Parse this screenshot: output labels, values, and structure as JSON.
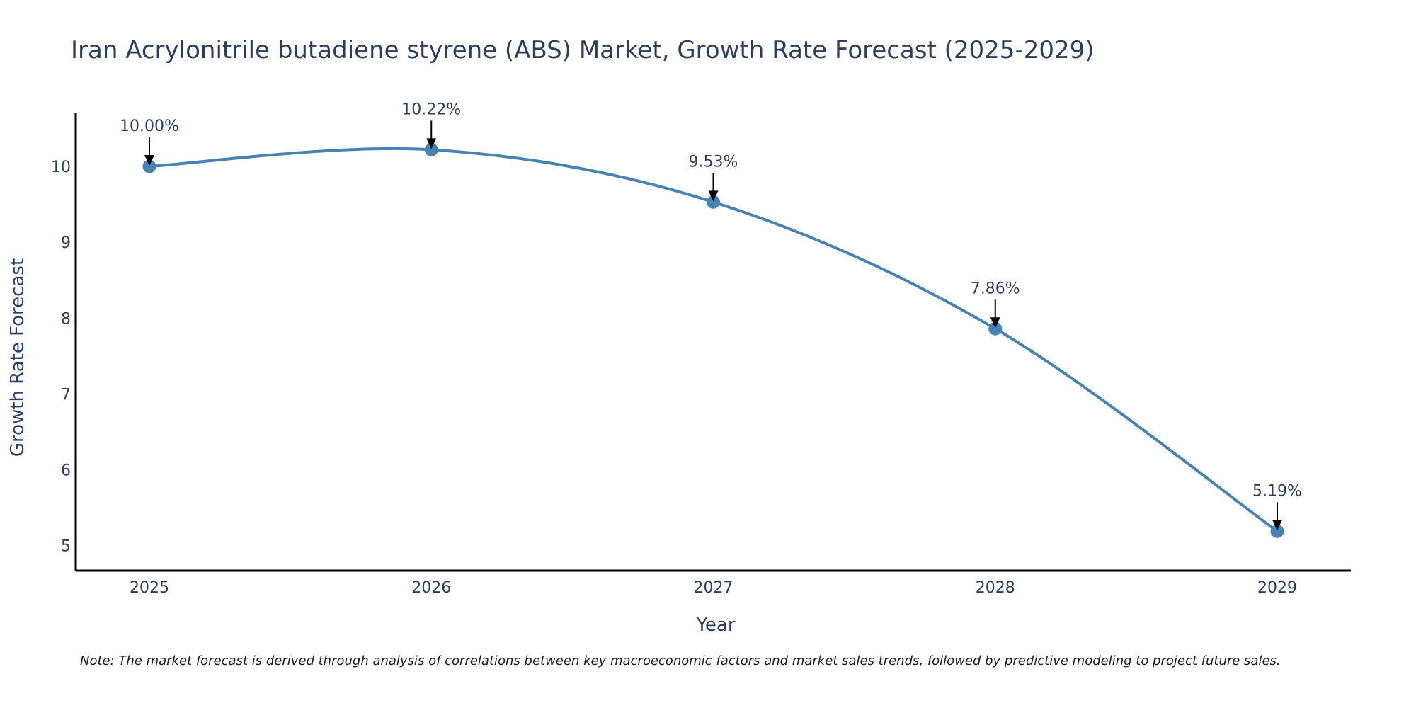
{
  "chart_data": {
    "type": "line",
    "title": "Iran Acrylonitrile butadiene styrene (ABS) Market, Growth Rate Forecast (2025-2029)",
    "xlabel": "Year",
    "ylabel": "Growth Rate Forecast",
    "categories": [
      "2025",
      "2026",
      "2027",
      "2028",
      "2029"
    ],
    "series": [
      {
        "name": "Growth Rate Forecast",
        "values": [
          10.0,
          10.22,
          9.53,
          7.86,
          5.19
        ],
        "labels": [
          "10.00%",
          "10.22%",
          "9.53%",
          "7.86%",
          "5.19%"
        ]
      }
    ],
    "ylim": [
      4.67,
      10.7
    ],
    "yticks": [
      "5",
      "6",
      "7",
      "8",
      "9",
      "10"
    ],
    "grid": false,
    "line_shape": "spline",
    "colors": {
      "line": "#4682b4",
      "marker": "#4682b4",
      "axis": "#000000",
      "text": "#2a3f5f",
      "arrow": "#000000"
    }
  },
  "note": "Note: The market forecast is derived through analysis of correlations between key macroeconomic factors and market sales trends, followed by predictive modeling to project future sales."
}
